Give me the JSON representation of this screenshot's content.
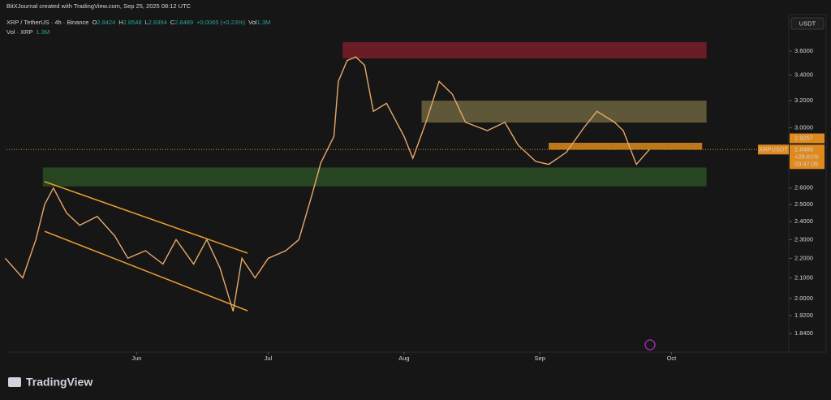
{
  "header": {
    "credit": "BitXJournal created with TradingView.com, Sep 25, 2025 08:12 UTC",
    "symbol": "XRP / TetherUS · 4h · Binance",
    "ohlc": [
      {
        "label": "O",
        "value": "2.8424"
      },
      {
        "label": "H",
        "value": "2.8548"
      },
      {
        "label": "L",
        "value": "2.8394"
      },
      {
        "label": "C",
        "value": "2.8489"
      }
    ],
    "change": "+0.0065 (+0.23%)",
    "vol_label": "Vol",
    "vol_value": "1.3M",
    "volume_row": "Vol · XRP",
    "volume_value": "1.3M"
  },
  "chart_data": {
    "type": "line",
    "color": "#e8a86a",
    "log_scale": true,
    "grid": false,
    "axis_unit": "USDT",
    "x": [
      1,
      5,
      8,
      10,
      12,
      15,
      18,
      22,
      26,
      29,
      33,
      37,
      40,
      44,
      47,
      50,
      53,
      55,
      58,
      61,
      65,
      68,
      71,
      73,
      76,
      77,
      79,
      81,
      83,
      85,
      88,
      92,
      94,
      97,
      100,
      103,
      106,
      111,
      115,
      118,
      122,
      125,
      129,
      133,
      136,
      140,
      142,
      145,
      148
    ],
    "values": [
      2.2,
      2.1,
      2.3,
      2.5,
      2.6,
      2.45,
      2.38,
      2.43,
      2.32,
      2.2,
      2.24,
      2.17,
      2.3,
      2.17,
      2.3,
      2.15,
      1.94,
      2.2,
      2.1,
      2.2,
      2.24,
      2.3,
      2.56,
      2.76,
      2.94,
      3.35,
      3.52,
      3.55,
      3.48,
      3.12,
      3.18,
      2.94,
      2.79,
      3.04,
      3.35,
      3.25,
      3.04,
      2.98,
      3.04,
      2.88,
      2.77,
      2.75,
      2.83,
      3.0,
      3.12,
      3.04,
      2.98,
      2.75,
      2.85
    ],
    "xlim": [
      1.3,
      179.4
    ],
    "ylim": [
      1.767,
      3.911
    ],
    "xticks": [
      {
        "value": 31,
        "label": "Jun"
      },
      {
        "value": 61,
        "label": "Jul"
      },
      {
        "value": 92,
        "label": "Aug"
      },
      {
        "value": 123,
        "label": "Sep"
      },
      {
        "value": 153,
        "label": "Oct"
      }
    ],
    "yticks": [
      {
        "value": 3.6,
        "label": "3.6000"
      },
      {
        "value": 3.4,
        "label": "3.4000"
      },
      {
        "value": 3.2,
        "label": "3.2000"
      },
      {
        "value": 3.0,
        "label": "3.0000"
      },
      {
        "value": 2.6,
        "label": "2.6000"
      },
      {
        "value": 2.5,
        "label": "2.5000"
      },
      {
        "value": 2.4,
        "label": "2.4000"
      },
      {
        "value": 2.3,
        "label": "2.3000"
      },
      {
        "value": 2.2,
        "label": "2.2000"
      },
      {
        "value": 2.1,
        "label": "2.1000"
      },
      {
        "value": 2.0,
        "label": "2.0000"
      },
      {
        "value": 1.92,
        "label": "1.9200"
      },
      {
        "value": 1.84,
        "label": "1.8400"
      }
    ],
    "zones": [
      {
        "x": [
          78,
          161
        ],
        "y": [
          3.538,
          3.677
        ],
        "color": "#7a1e28"
      },
      {
        "x": [
          96,
          161
        ],
        "y": [
          3.038,
          3.2
        ],
        "color": "#6b6440"
      },
      {
        "x": [
          125,
          160
        ],
        "y": [
          2.848,
          2.895
        ],
        "color": "#d98a1c"
      },
      {
        "x": [
          9.6,
          161
        ],
        "y": [
          2.61,
          2.73
        ],
        "color": "#2c4d25"
      }
    ],
    "channel": [
      {
        "x": [
          10,
          56.3
        ],
        "y": [
          2.64,
          2.227
        ]
      },
      {
        "x": [
          10,
          56.3
        ],
        "y": [
          2.346,
          1.942
        ]
      }
    ],
    "channel_color": "#f0a030",
    "last_price": {
      "value": 2.8489,
      "label": "2.8489",
      "symbol": "XRPUSDT",
      "change": "+28.61%",
      "countdown": "03:47:05"
    },
    "marker_price": {
      "value": 2.9257,
      "label": "2.9257"
    }
  },
  "footer": {
    "logo": "TradingView"
  }
}
